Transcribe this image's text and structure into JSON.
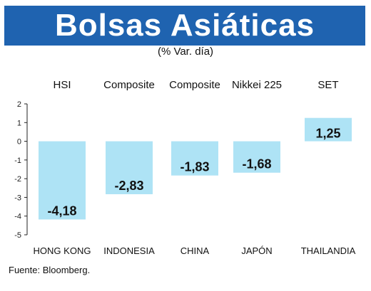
{
  "header": {
    "title": "Bolsas Asiáticas",
    "subtitle": "(% Var. día)",
    "bar_color": "#1f63b0"
  },
  "source": "Fuente: Bloomberg.",
  "chart_data": {
    "type": "bar",
    "title": "Bolsas Asiáticas",
    "subtitle": "(% Var. día)",
    "indices": [
      "HSI",
      "Composite",
      "Composite",
      "Nikkei 225",
      "SET"
    ],
    "categories": [
      "HONG KONG",
      "INDONESIA",
      "CHINA",
      "JAPÓN",
      "THAILANDIA"
    ],
    "values": [
      -4.18,
      -2.83,
      -1.83,
      -1.68,
      1.25
    ],
    "value_labels": [
      "-4,18",
      "-2,83",
      "-1,83",
      "-1,68",
      "1,25"
    ],
    "ylim": [
      -5,
      2
    ],
    "yticks": [
      2,
      1,
      0,
      -1,
      -2,
      -3,
      -4,
      -5
    ],
    "bar_color": "#aee3f5",
    "grid": false,
    "legend": "none"
  }
}
